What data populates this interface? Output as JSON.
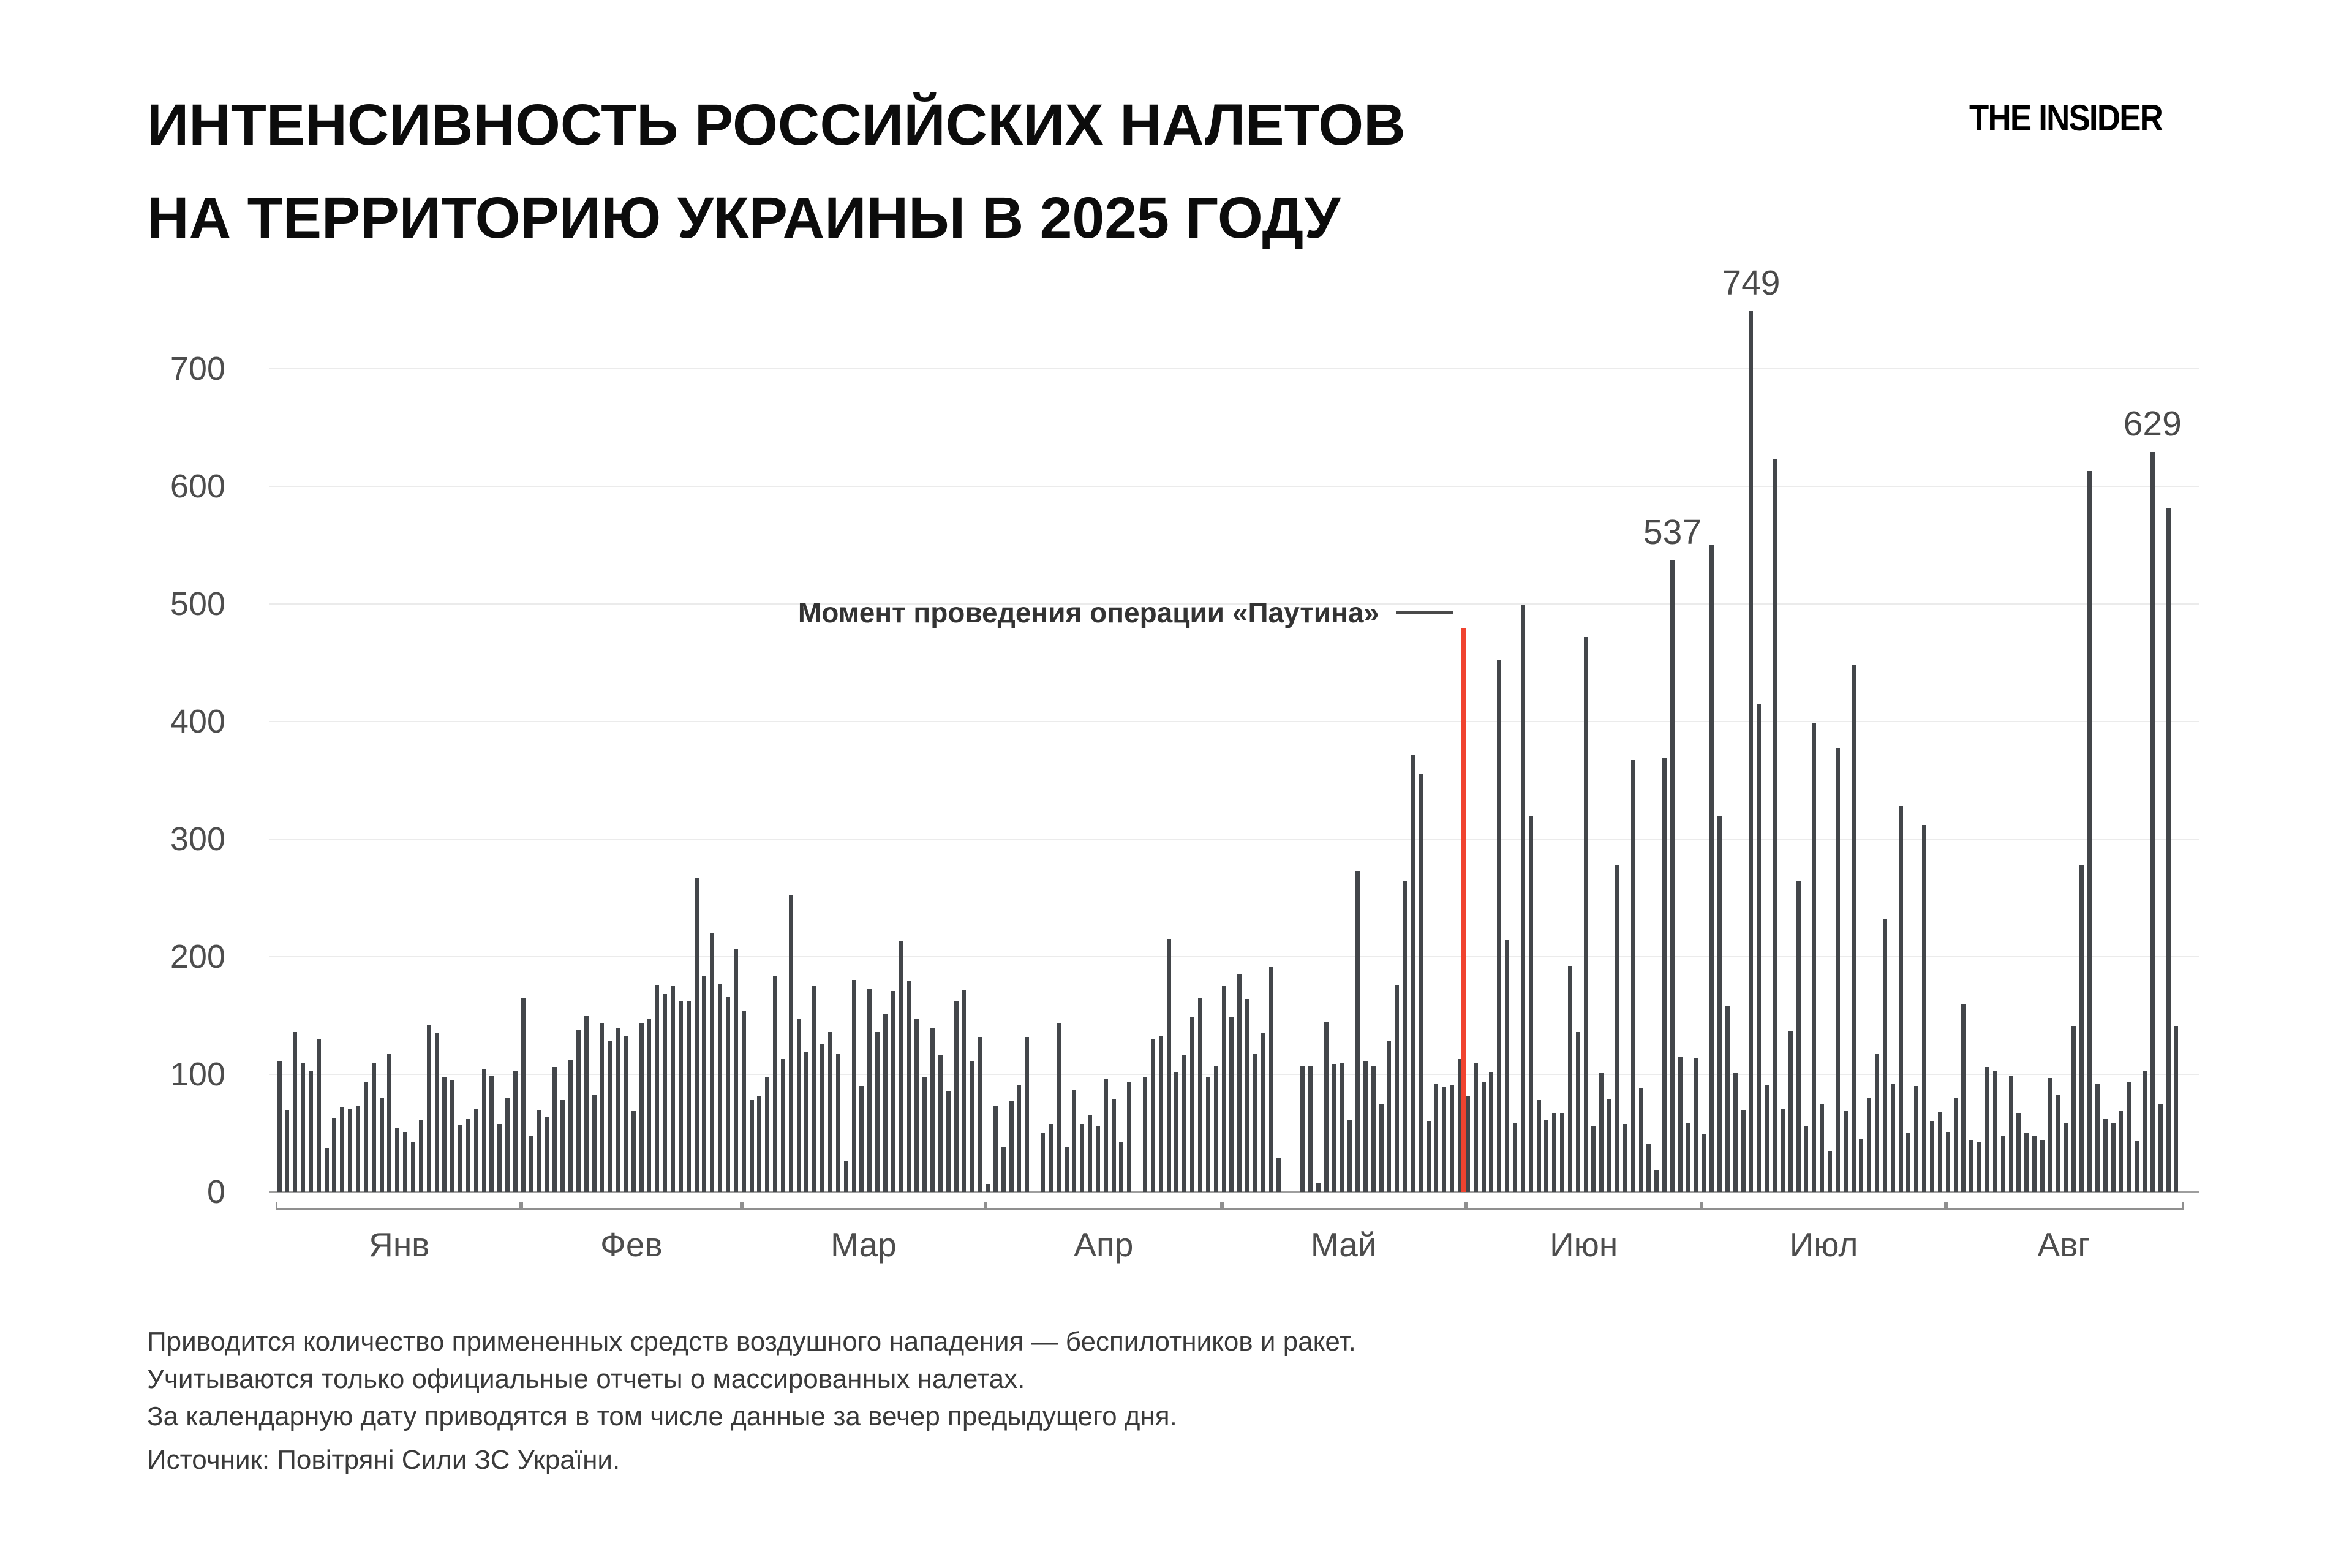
{
  "header": {
    "title_line1": "ИНТЕНСИВНОСТЬ РОССИЙСКИХ НАЛЕТОВ",
    "title_line2": "НА ТЕРРИТОРИЮ УКРАИНЫ В 2025 ГОДУ",
    "logo": "THE INSIDER"
  },
  "chart_data": {
    "type": "bar",
    "title": "Интенсивность российских налетов на территорию Украины в 2025 году",
    "ylabel": "",
    "xlabel": "",
    "ylim": [
      0,
      760
    ],
    "grid": "horizontal",
    "y_ticks": [
      0,
      100,
      200,
      300,
      400,
      500,
      600,
      700
    ],
    "bar_color": "#43464a",
    "months": [
      {
        "label": "Янв",
        "values": [
          111,
          70,
          136,
          110,
          103,
          130,
          37,
          63,
          72,
          71,
          73,
          93,
          110,
          80,
          117,
          54,
          51,
          42,
          61,
          142,
          135,
          98,
          95,
          57,
          62,
          71,
          104,
          99,
          58,
          80,
          103
        ]
      },
      {
        "label": "Фев",
        "values": [
          165,
          48,
          70,
          64,
          106,
          78,
          112,
          138,
          150,
          83,
          143,
          128,
          139,
          133,
          69,
          144,
          147,
          176,
          168,
          175,
          162,
          162,
          267,
          184,
          220,
          177,
          166,
          207
        ]
      },
      {
        "label": "Мар",
        "values": [
          154,
          78,
          82,
          98,
          184,
          113,
          252,
          147,
          119,
          175,
          126,
          136,
          117,
          26,
          180,
          90,
          173,
          136,
          151,
          171,
          213,
          179,
          147,
          98,
          139,
          116,
          86,
          162,
          172,
          111,
          132
        ]
      },
      {
        "label": "Апр",
        "values": [
          7,
          73,
          38,
          77,
          91,
          132,
          0,
          50,
          58,
          144,
          38,
          87,
          58,
          65,
          56,
          96,
          79,
          42,
          94,
          0,
          98,
          130,
          133,
          215,
          102,
          116,
          149,
          165,
          98,
          107
        ]
      },
      {
        "label": "Май",
        "values": [
          175,
          149,
          185,
          164,
          117,
          135,
          191,
          29,
          0,
          0,
          107,
          107,
          8,
          145,
          109,
          110,
          61,
          273,
          111,
          107,
          75,
          128,
          176,
          264,
          372,
          355,
          60,
          92,
          89,
          91,
          113
        ]
      },
      {
        "label": "Июн",
        "values": [
          81,
          110,
          93,
          102,
          452,
          214,
          59,
          499,
          320,
          78,
          61,
          67,
          67,
          192,
          136,
          472,
          56,
          101,
          79,
          278,
          58,
          367,
          88,
          41,
          18,
          369,
          537,
          115,
          59,
          114
        ]
      },
      {
        "label": "Июл",
        "values": [
          49,
          550,
          320,
          158,
          101,
          70,
          749,
          415,
          91,
          623,
          71,
          137,
          264,
          56,
          399,
          75,
          35,
          377,
          69,
          448,
          45,
          80,
          117,
          232,
          92,
          328,
          50,
          90,
          312,
          60,
          68
        ]
      },
      {
        "label": "Авг",
        "values": [
          51,
          80,
          160,
          44,
          42,
          106,
          103,
          48,
          99,
          67,
          50,
          48,
          44,
          97,
          83,
          59,
          141,
          278,
          613,
          92,
          62,
          59,
          69,
          94,
          43,
          103,
          629,
          75,
          581,
          141
        ]
      }
    ],
    "peak_labels": [
      537,
      749,
      629
    ],
    "event_line": {
      "label": "Момент проведения операции «Паутина»",
      "after_month": "Май",
      "color": "#f0432f"
    }
  },
  "annotation": {
    "text": "Момент проведения операции «Паутина»"
  },
  "footer": {
    "note_line1": "Приводится количество примененных средств воздушного нападения — беспилотников и ракет.",
    "note_line2": "Учитываются только официальные отчеты о массированных налетах.",
    "note_line3": "За календарную дату приводятся в том числе данные за вечер предыдущего дня.",
    "source": "Источник: Повітряні Сили ЗС України."
  }
}
